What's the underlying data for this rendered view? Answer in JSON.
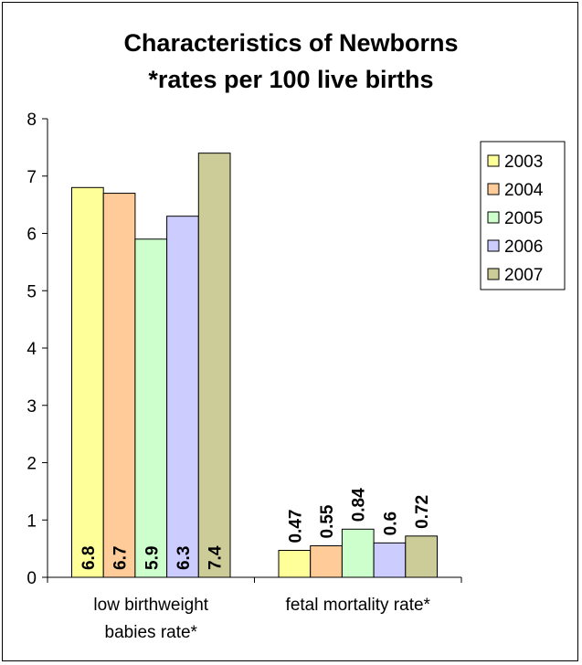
{
  "chart_data": {
    "type": "bar",
    "title": "Characteristics of Newborns",
    "subtitle": "*rates per 100 live births",
    "categories": [
      "low birthweight babies rate*",
      "fetal mortality rate*"
    ],
    "category_lines": [
      [
        "low birthweight",
        "babies rate*"
      ],
      [
        "fetal mortality rate*"
      ]
    ],
    "series": [
      {
        "name": "2003",
        "color": "#ffff99",
        "values": [
          6.8,
          0.47
        ],
        "labels": [
          "6.8",
          "0.47"
        ]
      },
      {
        "name": "2004",
        "color": "#ffcc99",
        "values": [
          6.7,
          0.55
        ],
        "labels": [
          "6.7",
          "0.55"
        ]
      },
      {
        "name": "2005",
        "color": "#ccffcc",
        "values": [
          5.9,
          0.84
        ],
        "labels": [
          "5.9",
          "0.84"
        ]
      },
      {
        "name": "2006",
        "color": "#ccccff",
        "values": [
          6.3,
          0.6
        ],
        "labels": [
          "6.3",
          "0.6"
        ]
      },
      {
        "name": "2007",
        "color": "#cccc99",
        "values": [
          7.4,
          0.72
        ],
        "labels": [
          "7.4",
          "0.72"
        ]
      }
    ],
    "y_ticks": [
      0,
      1,
      2,
      3,
      4,
      5,
      6,
      7,
      8
    ],
    "ylim": [
      0,
      8
    ],
    "grid": false,
    "legend": "right"
  }
}
